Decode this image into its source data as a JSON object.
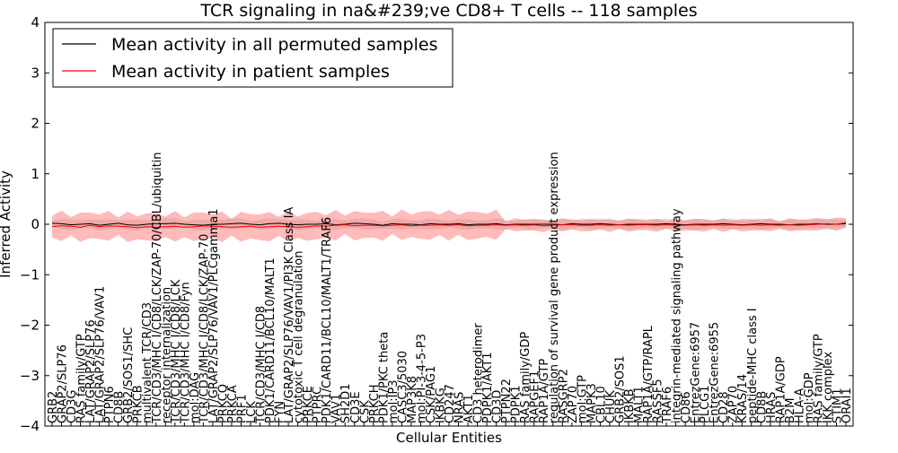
{
  "chart_data": {
    "type": "line",
    "title": "TCR signaling in na&#239;ve CD8+ T cells -- 118 samples",
    "xlabel": "Cellular Entities",
    "ylabel": "Inferred Activity",
    "ylim": [
      -4,
      4
    ],
    "yticks": [
      -4,
      -3,
      -2,
      -1,
      0,
      1,
      2,
      3,
      4
    ],
    "grid": false,
    "legend_position": "top-left",
    "categories": [
      "GRB2",
      "GRAP2/SLP76",
      "CD3G",
      "RAS family/GTP",
      "LAT/GRAP2/SLP76",
      "LAT/GRAP2/SLP76/VAV1",
      "PTPN6",
      "CD8B",
      "GRB2/SOS1/SHC",
      "PRKCB",
      "multivalent TCR/CD3",
      "TCR/CD3/MHC I/CD8/LCK/ZAP-70/CBL/ubiquitin",
      "receptor internalization",
      "TCR/CD3/MHC I/CD8/LCK",
      "TCR/CD3/MHC I/CD8/Fyn",
      "mol:DAG",
      "TCR/CD3/MHC I/CD8/LCK/ZAP-70",
      "LAT/GRAP2/SLP76/VAV1/PLCgamma1",
      "PRKCQ",
      "PRKCA",
      "PRF1",
      "LCK",
      "TCR/CD3/MHC I/CD8",
      "PDK1/CARD11/BCL10/MALT1",
      "FYN",
      "LAT/GRAP2/SLP76/VAV1/PI3K Class IA",
      "cytotoxic T cell degranulation",
      "PRKCE",
      "PTPRC",
      "PDK1/CARD11/BCL10/MALT1/TRAF6",
      "VAV1",
      "SH2D1",
      "CD3E",
      "CSK",
      "PRKCH",
      "PDK1/PKC theta",
      "mol:IP3",
      "CASC3/5030",
      "MAP3K8",
      "mol:PI-3-4-5-P3",
      "CSK/PAG1",
      "IKBKG",
      "CD247",
      "NRAS",
      "AKT1",
      "CD3 heterodimer",
      "PDPK1/AKT1",
      "CD3D",
      "PTPN22",
      "PDPK1",
      "RAS family/GDP",
      "RAPGEF1",
      "RAP1A/GTP",
      "regulation of survival gene product expression",
      "RASGRP2",
      "ZAP70",
      "mol:GTP",
      "MAPK3",
      "CBL10",
      "CHUK",
      "GRB2/SOS1",
      "IKBKB",
      "MALT1",
      "RAP1A/GTP/RAPL",
      "RASSF5",
      "TRAF6",
      "integrin-mediated signaling pathway",
      "CD86",
      "EntrezGene:6957",
      "PLCG1",
      "EntrezGene:6955",
      "CD28",
      "ZAP70",
      "KRAS/14",
      "peptide-MHC class I",
      "CD8B",
      "HRAS",
      "RAP1A/GDP",
      "B2M",
      "HLA-A",
      "mol:GDP",
      "RAS family/GTP",
      "IKK complex",
      "STIM1",
      "ORAI1"
    ],
    "series": [
      {
        "name": "Mean activity in all permuted samples",
        "color": "#000000",
        "values": [
          0.02,
          0.01,
          -0.01,
          0.0,
          0.01,
          -0.02,
          0.0,
          0.02,
          -0.01,
          -0.02,
          0.0,
          0.01,
          0.01,
          0.02,
          0.0,
          -0.01,
          -0.02,
          0.0,
          0.0,
          0.01,
          0.02,
          0.0,
          -0.01,
          0.01,
          0.02,
          0.0,
          -0.01,
          0.0,
          0.0,
          0.01,
          -0.01,
          0.0,
          0.02,
          0.01,
          0.0,
          -0.02,
          0.01,
          0.0,
          0.0,
          -0.01,
          0.01,
          0.0,
          0.0,
          0.01,
          -0.01,
          0.0,
          0.0,
          0.01,
          -0.01,
          0.0,
          0.0,
          0.0,
          0.0,
          0.0,
          -0.01,
          0.01,
          0.0,
          0.0,
          0.01,
          0.0,
          -0.01,
          0.0,
          0.0,
          0.0,
          0.0,
          0.01,
          0.0,
          -0.01,
          0.0,
          0.0,
          0.0,
          0.01,
          0.0,
          -0.01,
          0.0,
          0.01,
          0.0,
          0.0,
          -0.01,
          0.0,
          0.0,
          0.01,
          0.0,
          0.0,
          0.01
        ]
      },
      {
        "name": "Mean activity in patient samples",
        "color": "#ff0000",
        "values": [
          -0.05,
          -0.03,
          -0.04,
          -0.06,
          -0.02,
          -0.05,
          -0.03,
          -0.04,
          -0.05,
          -0.07,
          -0.05,
          -0.06,
          -0.05,
          -0.04,
          -0.06,
          -0.05,
          -0.03,
          -0.04,
          -0.05,
          -0.06,
          -0.05,
          -0.04,
          -0.06,
          -0.05,
          -0.04,
          -0.05,
          -0.06,
          -0.05,
          -0.03,
          -0.04,
          -0.02,
          -0.01,
          -0.03,
          -0.02,
          -0.02,
          -0.03,
          -0.02,
          -0.01,
          -0.03,
          -0.02,
          -0.02,
          -0.01,
          -0.02,
          -0.01,
          -0.03,
          -0.02,
          -0.02,
          -0.01,
          -0.02,
          -0.01,
          -0.02,
          -0.01,
          -0.03,
          -0.02,
          -0.01,
          -0.01,
          -0.02,
          -0.02,
          -0.01,
          -0.02,
          -0.01,
          -0.02,
          -0.01,
          -0.01,
          -0.02,
          -0.01,
          -0.02,
          -0.02,
          -0.01,
          -0.02,
          -0.01,
          -0.02,
          -0.01,
          -0.02,
          -0.01,
          -0.02,
          -0.01,
          -0.02,
          -0.01,
          -0.02,
          -0.01,
          0.0,
          0.01,
          0.0,
          0.03
        ]
      }
    ]
  }
}
